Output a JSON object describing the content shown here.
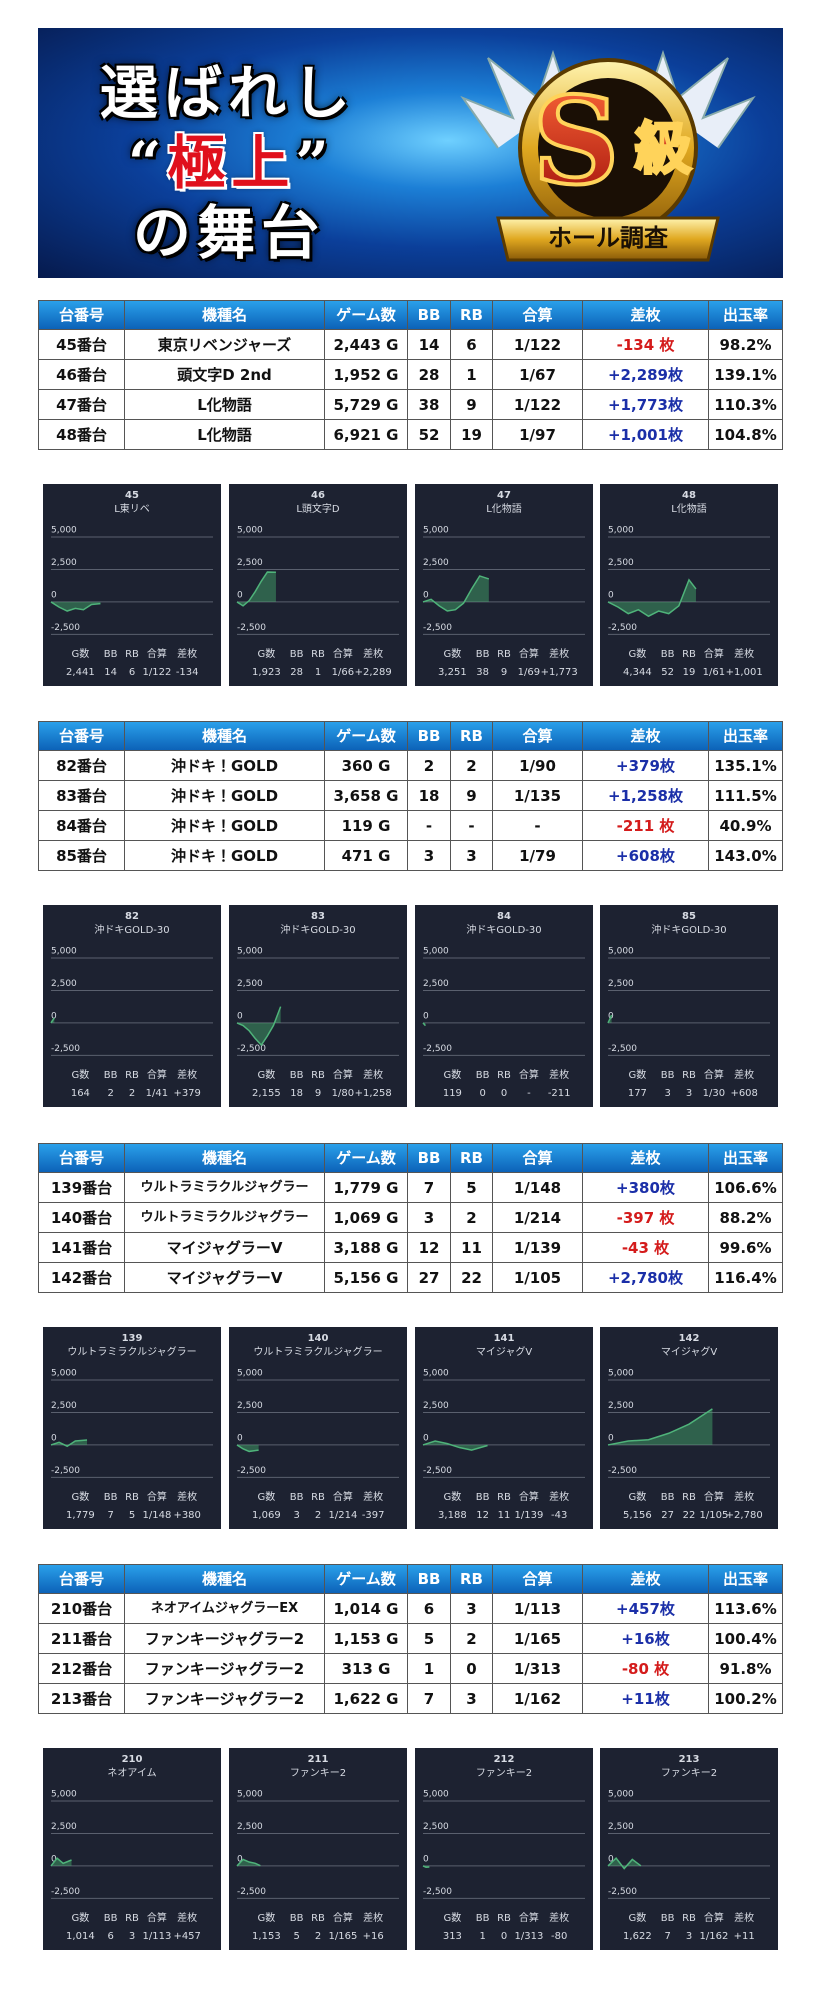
{
  "banner": {
    "line1": "選ばれし",
    "quote_open": "“",
    "line2": "極上",
    "quote_close": "”",
    "line3": "の舞台",
    "badge_letter": "S",
    "badge_kanji": "級",
    "ribbon": "ホール調査"
  },
  "table_header": [
    "台番号",
    "機種名",
    "ゲーム数",
    "BB",
    "RB",
    "合算",
    "差枚",
    "出玉率"
  ],
  "chart_axis": {
    "xlim": [
      0,
      8000
    ],
    "ylim": [
      -2700,
      5000
    ],
    "yticks": [
      {
        "value": 5000,
        "label": "5,000"
      },
      {
        "value": 2500,
        "label": "2,500"
      },
      0,
      {
        "value": -2500,
        "label": "-2,500"
      }
    ],
    "line_color": "#4fb37a",
    "fill_color": "rgba(72,176,110,0.45)"
  },
  "stat_labels": [
    "G数",
    "BB",
    "RB",
    "合算",
    "差枚"
  ],
  "sections": [
    {
      "rows": [
        [
          "45番台",
          "東京リベンジャーズ",
          "2,443 G",
          "14",
          "6",
          "1/122",
          "-134 枚",
          "98.2%"
        ],
        [
          "46番台",
          "頭文字D 2nd",
          "1,952 G",
          "28",
          "1",
          "1/67",
          "+2,289枚",
          "139.1%"
        ],
        [
          "47番台",
          "L化物語",
          "5,729 G",
          "38",
          "9",
          "1/122",
          "+1,773枚",
          "110.3%"
        ],
        [
          "48番台",
          "L化物語",
          "6,921 G",
          "52",
          "19",
          "1/97",
          "+1,001枚",
          "104.8%"
        ]
      ],
      "charts": [
        {
          "id": "45",
          "name": "L東リベ",
          "stats": [
            "2,441",
            "14",
            "6",
            "1/122",
            "-134"
          ],
          "x": [
            0,
            400,
            800,
            1200,
            1600,
            2000,
            2441
          ],
          "values": [
            0,
            -400,
            -700,
            -500,
            -600,
            -200,
            -134
          ]
        },
        {
          "id": "46",
          "name": "L頭文字D",
          "stats": [
            "1,923",
            "28",
            "1",
            "1/66",
            "+2,289"
          ],
          "x": [
            0,
            300,
            600,
            900,
            1200,
            1500,
            1923
          ],
          "values": [
            0,
            -300,
            100,
            800,
            1600,
            2300,
            2289
          ]
        },
        {
          "id": "47",
          "name": "L化物語",
          "stats": [
            "3,251",
            "38",
            "9",
            "1/69",
            "+1,773"
          ],
          "x": [
            0,
            400,
            800,
            1200,
            1600,
            2000,
            2400,
            2800,
            3251
          ],
          "values": [
            0,
            200,
            -300,
            -700,
            -600,
            -100,
            1000,
            2000,
            1773
          ]
        },
        {
          "id": "48",
          "name": "L化物語",
          "stats": [
            "4,344",
            "52",
            "19",
            "1/61",
            "+1,001"
          ],
          "x": [
            0,
            500,
            1000,
            1500,
            2000,
            2500,
            3000,
            3500,
            4000,
            4344
          ],
          "values": [
            0,
            -400,
            -900,
            -600,
            -1100,
            -700,
            -900,
            -300,
            1700,
            1001
          ]
        }
      ]
    },
    {
      "rows": [
        [
          "82番台",
          "沖ドキ！GOLD",
          "360 G",
          "2",
          "2",
          "1/90",
          "+379枚",
          "135.1%"
        ],
        [
          "83番台",
          "沖ドキ！GOLD",
          "3,658 G",
          "18",
          "9",
          "1/135",
          "+1,258枚",
          "111.5%"
        ],
        [
          "84番台",
          "沖ドキ！GOLD",
          "119 G",
          "-",
          "-",
          "-",
          "-211 枚",
          "40.9%"
        ],
        [
          "85番台",
          "沖ドキ！GOLD",
          "471 G",
          "3",
          "3",
          "1/79",
          "+608枚",
          "143.0%"
        ]
      ],
      "charts": [
        {
          "id": "82",
          "name": "沖ドキGOLD-30",
          "stats": [
            "164",
            "2",
            "2",
            "1/41",
            "+379"
          ],
          "x": [
            0,
            80,
            164
          ],
          "values": [
            0,
            200,
            379
          ]
        },
        {
          "id": "83",
          "name": "沖ドキGOLD-30",
          "stats": [
            "2,155",
            "18",
            "9",
            "1/80",
            "+1,258"
          ],
          "x": [
            0,
            300,
            600,
            900,
            1200,
            1500,
            1800,
            2155
          ],
          "values": [
            0,
            -200,
            -600,
            -1200,
            -1700,
            -1000,
            -200,
            1258
          ]
        },
        {
          "id": "84",
          "name": "沖ドキGOLD-30",
          "stats": [
            "119",
            "0",
            "0",
            "-",
            "-211"
          ],
          "x": [
            0,
            60,
            119
          ],
          "values": [
            0,
            -100,
            -211
          ]
        },
        {
          "id": "85",
          "name": "沖ドキGOLD-30",
          "stats": [
            "177",
            "3",
            "3",
            "1/30",
            "+608"
          ],
          "x": [
            0,
            90,
            177
          ],
          "values": [
            0,
            300,
            608
          ]
        }
      ]
    },
    {
      "rows": [
        [
          "139番台",
          "ウルトラミラクルジャグラー",
          "1,779 G",
          "7",
          "5",
          "1/148",
          "+380枚",
          "106.6%"
        ],
        [
          "140番台",
          "ウルトラミラクルジャグラー",
          "1,069 G",
          "3",
          "2",
          "1/214",
          "-397 枚",
          "88.2%"
        ],
        [
          "141番台",
          "マイジャグラーV",
          "3,188 G",
          "12",
          "11",
          "1/139",
          "-43 枚",
          "99.6%"
        ],
        [
          "142番台",
          "マイジャグラーV",
          "5,156 G",
          "27",
          "22",
          "1/105",
          "+2,780枚",
          "116.4%"
        ]
      ],
      "charts": [
        {
          "id": "139",
          "name": "ウルトラミラクルジャグラー",
          "stats": [
            "1,779",
            "7",
            "5",
            "1/148",
            "+380"
          ],
          "x": [
            0,
            400,
            800,
            1200,
            1779
          ],
          "values": [
            0,
            200,
            -100,
            300,
            380
          ]
        },
        {
          "id": "140",
          "name": "ウルトラミラクルジャグラー",
          "stats": [
            "1,069",
            "3",
            "2",
            "1/214",
            "-397"
          ],
          "x": [
            0,
            300,
            600,
            1069
          ],
          "values": [
            0,
            -300,
            -500,
            -397
          ]
        },
        {
          "id": "141",
          "name": "マイジャグV",
          "stats": [
            "3,188",
            "12",
            "11",
            "1/139",
            "-43"
          ],
          "x": [
            0,
            600,
            1200,
            1800,
            2400,
            3188
          ],
          "values": [
            0,
            300,
            100,
            -200,
            -400,
            -43
          ]
        },
        {
          "id": "142",
          "name": "マイジャグV",
          "stats": [
            "5,156",
            "27",
            "22",
            "1/105",
            "+2,780"
          ],
          "x": [
            0,
            1000,
            2000,
            3000,
            4000,
            5156
          ],
          "values": [
            0,
            300,
            400,
            900,
            1600,
            2780
          ]
        }
      ]
    },
    {
      "rows": [
        [
          "210番台",
          "ネオアイムジャグラーEX",
          "1,014 G",
          "6",
          "3",
          "1/113",
          "+457枚",
          "113.6%"
        ],
        [
          "211番台",
          "ファンキージャグラー2",
          "1,153 G",
          "5",
          "2",
          "1/165",
          "+16枚",
          "100.4%"
        ],
        [
          "212番台",
          "ファンキージャグラー2",
          "313 G",
          "1",
          "0",
          "1/313",
          "-80 枚",
          "91.8%"
        ],
        [
          "213番台",
          "ファンキージャグラー2",
          "1,622 G",
          "7",
          "3",
          "1/162",
          "+11枚",
          "100.2%"
        ]
      ],
      "charts": [
        {
          "id": "210",
          "name": "ネオアイム",
          "stats": [
            "1,014",
            "6",
            "3",
            "1/113",
            "+457"
          ],
          "x": [
            0,
            300,
            600,
            1014
          ],
          "values": [
            0,
            600,
            200,
            457
          ]
        },
        {
          "id": "211",
          "name": "ファンキー2",
          "stats": [
            "1,153",
            "5",
            "2",
            "1/165",
            "+16"
          ],
          "x": [
            0,
            300,
            600,
            900,
            1153
          ],
          "values": [
            0,
            500,
            300,
            200,
            16
          ]
        },
        {
          "id": "212",
          "name": "ファンキー2",
          "stats": [
            "313",
            "1",
            "0",
            "1/313",
            "-80"
          ],
          "x": [
            0,
            150,
            313
          ],
          "values": [
            0,
            -100,
            -80
          ]
        },
        {
          "id": "213",
          "name": "ファンキー2",
          "stats": [
            "1,622",
            "7",
            "3",
            "1/162",
            "+11"
          ],
          "x": [
            0,
            400,
            800,
            1200,
            1622
          ],
          "values": [
            0,
            600,
            -200,
            500,
            11
          ]
        }
      ]
    }
  ]
}
